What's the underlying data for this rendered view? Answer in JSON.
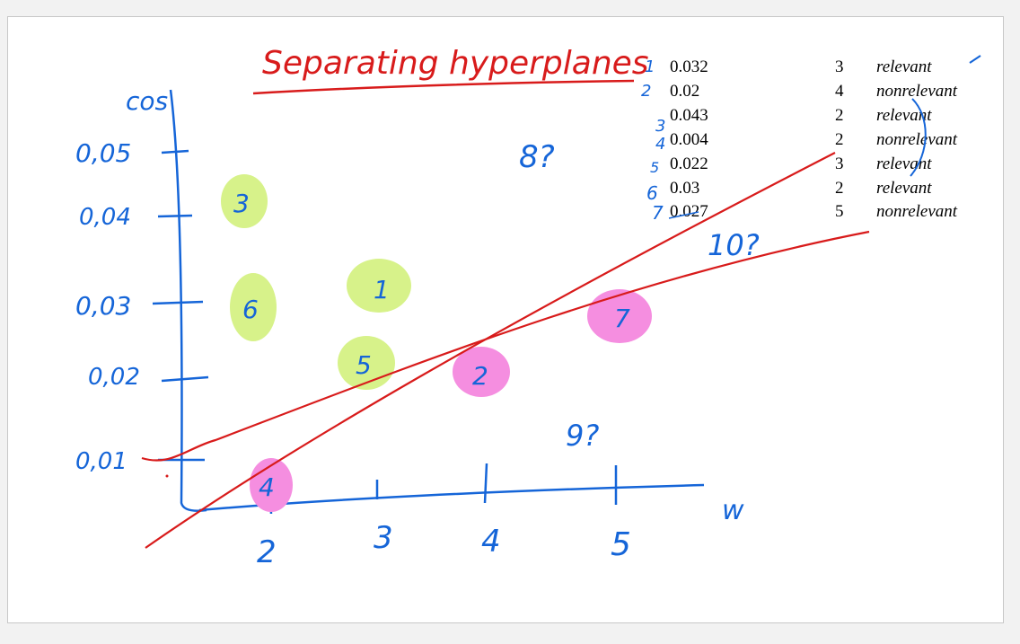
{
  "title": "Separating hyperplanes",
  "axes": {
    "x_label": "w",
    "y_label": "cos",
    "x_ticks": [
      "2",
      "3",
      "4",
      "5"
    ],
    "y_ticks": [
      "0,01",
      "0,02",
      "0,03",
      "0,04",
      "0,05"
    ]
  },
  "table": {
    "rows": [
      {
        "num": "1",
        "cos": "0.032",
        "w": "3",
        "label": "relevant"
      },
      {
        "num": "2",
        "cos": "0.02",
        "w": "4",
        "label": "nonrelevant"
      },
      {
        "num": "3",
        "cos": "0.043",
        "w": "2",
        "label": "relevant"
      },
      {
        "num": "4",
        "cos": "0.004",
        "w": "2",
        "label": "nonrelevant"
      },
      {
        "num": "5",
        "cos": "0.022",
        "w": "3",
        "label": "relevant"
      },
      {
        "num": "6",
        "cos": "0.03",
        "w": "2",
        "label": "relevant"
      },
      {
        "num": "7",
        "cos": "0.027",
        "w": "5",
        "label": "nonrelevant"
      }
    ]
  },
  "points": [
    {
      "id": "1",
      "class": "relevant"
    },
    {
      "id": "2",
      "class": "nonrelevant"
    },
    {
      "id": "3",
      "class": "relevant"
    },
    {
      "id": "4",
      "class": "nonrelevant"
    },
    {
      "id": "5",
      "class": "relevant"
    },
    {
      "id": "6",
      "class": "relevant"
    },
    {
      "id": "7",
      "class": "nonrelevant"
    }
  ],
  "queries": [
    "8?",
    "9?",
    "10?"
  ],
  "colors": {
    "ink_blue": "#1565d8",
    "ink_red": "#d81b1b",
    "relevant": "#d7f28a",
    "nonrelevant": "#f58ee0"
  }
}
